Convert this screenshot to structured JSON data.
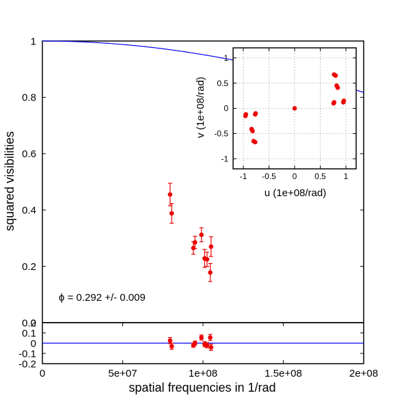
{
  "colors": {
    "model": "#0000ee",
    "points": "#ee0000",
    "frame": "#000000",
    "grid": "#a0a0a0"
  },
  "chart_data": [
    {
      "type": "line",
      "panel": "main",
      "xlabel": "",
      "ylabel": "squared visibilities",
      "annotation": "ϕ = 0.292 +/- 0.009",
      "xlim": [
        0,
        200000000
      ],
      "ylim": [
        0,
        1
      ],
      "yticks": [
        {
          "v": 0,
          "label": "0"
        },
        {
          "v": 0.2,
          "label": "0.2"
        },
        {
          "v": 0.4,
          "label": "0.4"
        },
        {
          "v": 0.6,
          "label": "0.6"
        },
        {
          "v": 0.8,
          "label": "0.8"
        },
        {
          "v": 1,
          "label": "1"
        }
      ],
      "model": {
        "function": "uniform-disk",
        "diameter": 0.292
      },
      "points": [
        {
          "x": 79500000,
          "y": 0.455,
          "err": 0.04
        },
        {
          "x": 80500000,
          "y": 0.388,
          "err": 0.035
        },
        {
          "x": 94000000,
          "y": 0.265,
          "err": 0.022
        },
        {
          "x": 95000000,
          "y": 0.285,
          "err": 0.022
        },
        {
          "x": 99000000,
          "y": 0.312,
          "err": 0.025
        },
        {
          "x": 101000000,
          "y": 0.228,
          "err": 0.032
        },
        {
          "x": 102500000,
          "y": 0.225,
          "err": 0.025
        },
        {
          "x": 104500000,
          "y": 0.178,
          "err": 0.032
        },
        {
          "x": 105000000,
          "y": 0.27,
          "err": 0.035
        }
      ]
    },
    {
      "type": "scatter",
      "panel": "residuals",
      "xlabel": "spatial frequencies in 1/rad",
      "ylabel": "",
      "xlim": [
        0,
        200000000
      ],
      "ylim": [
        -0.2,
        0.2
      ],
      "xticks": [
        {
          "v": 0,
          "label": "0"
        },
        {
          "v": 50000000,
          "label": "5e+07"
        },
        {
          "v": 100000000,
          "label": "1e+08"
        },
        {
          "v": 150000000,
          "label": "1.5e+08"
        },
        {
          "v": 200000000,
          "label": "2e+08"
        }
      ],
      "yticks": [
        {
          "v": 0.2,
          "label": "0.2"
        },
        {
          "v": 0.1,
          "label": "0.1"
        },
        {
          "v": 0,
          "label": "0"
        },
        {
          "v": -0.1,
          "label": "-0.1"
        },
        {
          "v": -0.2,
          "label": "-0.2"
        }
      ],
      "points": [
        {
          "x": 79500000,
          "y": 0.025,
          "err": 0.03
        },
        {
          "x": 80500000,
          "y": -0.03,
          "err": 0.03
        },
        {
          "x": 94000000,
          "y": -0.02,
          "err": 0.02
        },
        {
          "x": 95000000,
          "y": 0.0,
          "err": 0.02
        },
        {
          "x": 99000000,
          "y": 0.055,
          "err": 0.025
        },
        {
          "x": 101000000,
          "y": -0.01,
          "err": 0.025
        },
        {
          "x": 102500000,
          "y": -0.02,
          "err": 0.025
        },
        {
          "x": 104500000,
          "y": 0.055,
          "err": 0.03
        },
        {
          "x": 105000000,
          "y": -0.04,
          "err": 0.03
        }
      ]
    },
    {
      "type": "scatter",
      "panel": "uv-coverage",
      "xlabel": "u (1e+08/rad)",
      "ylabel": "v (1e+08/rad)",
      "xlim": [
        -1.2,
        1.2
      ],
      "ylim": [
        -1.2,
        1.2
      ],
      "grid": true,
      "xticks": [
        {
          "v": -1,
          "label": "-1"
        },
        {
          "v": -0.5,
          "label": "-0.5"
        },
        {
          "v": 0,
          "label": "0"
        },
        {
          "v": 0.5,
          "label": "0.5"
        },
        {
          "v": 1,
          "label": "1"
        }
      ],
      "yticks": [
        {
          "v": -1,
          "label": "-1"
        },
        {
          "v": -0.5,
          "label": "-0.5"
        },
        {
          "v": 0,
          "label": "0"
        },
        {
          "v": 0.5,
          "label": "0.5"
        },
        {
          "v": 1,
          "label": "1"
        }
      ],
      "points": [
        {
          "x": 0,
          "y": 0
        },
        {
          "x": 0.77,
          "y": 0.67
        },
        {
          "x": 0.8,
          "y": 0.65
        },
        {
          "x": 0.82,
          "y": 0.45
        },
        {
          "x": 0.84,
          "y": 0.41
        },
        {
          "x": 0.76,
          "y": 0.1
        },
        {
          "x": 0.77,
          "y": 0.12
        },
        {
          "x": 0.95,
          "y": 0.12
        },
        {
          "x": 0.96,
          "y": 0.15
        },
        {
          "x": -0.77,
          "y": -0.67
        },
        {
          "x": -0.8,
          "y": -0.65
        },
        {
          "x": -0.82,
          "y": -0.45
        },
        {
          "x": -0.84,
          "y": -0.41
        },
        {
          "x": -0.76,
          "y": -0.1
        },
        {
          "x": -0.77,
          "y": -0.12
        },
        {
          "x": -0.95,
          "y": -0.12
        },
        {
          "x": -0.96,
          "y": -0.15
        }
      ]
    }
  ]
}
